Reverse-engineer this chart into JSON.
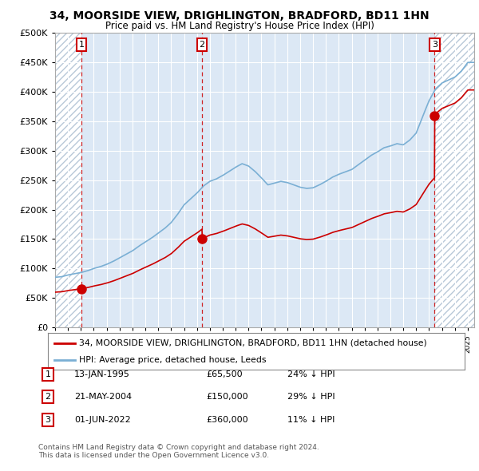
{
  "title": "34, MOORSIDE VIEW, DRIGHLINGTON, BRADFORD, BD11 1HN",
  "subtitle": "Price paid vs. HM Land Registry's House Price Index (HPI)",
  "xlim": [
    1993.0,
    2025.5
  ],
  "ylim": [
    0,
    500000
  ],
  "yticks": [
    0,
    50000,
    100000,
    150000,
    200000,
    250000,
    300000,
    350000,
    400000,
    450000,
    500000
  ],
  "ytick_labels": [
    "£0",
    "£50K",
    "£100K",
    "£150K",
    "£200K",
    "£250K",
    "£300K",
    "£350K",
    "£400K",
    "£450K",
    "£500K"
  ],
  "sale_dates": [
    1995.04,
    2004.39,
    2022.42
  ],
  "sale_prices": [
    65500,
    150000,
    360000
  ],
  "sale_labels": [
    "1",
    "2",
    "3"
  ],
  "hpi_color": "#7aafd4",
  "sale_color": "#cc0000",
  "vline_color": "#cc0000",
  "legend_sale": "34, MOORSIDE VIEW, DRIGHLINGTON, BRADFORD, BD11 1HN (detached house)",
  "legend_hpi": "HPI: Average price, detached house, Leeds",
  "table_rows": [
    [
      "1",
      "13-JAN-1995",
      "£65,500",
      "24% ↓ HPI"
    ],
    [
      "2",
      "21-MAY-2004",
      "£150,000",
      "29% ↓ HPI"
    ],
    [
      "3",
      "01-JUN-2022",
      "£360,000",
      "11% ↓ HPI"
    ]
  ],
  "footnote": "Contains HM Land Registry data © Crown copyright and database right 2024.\nThis data is licensed under the Open Government Licence v3.0.",
  "bg_color": "#ffffff",
  "plot_bg_color": "#dce8f5",
  "hatch_bg_color": "#ffffff",
  "hatch_color": "#b8c8d8",
  "grid_color": "#ffffff",
  "hpi_data_years": [
    1993,
    1993.5,
    1994,
    1994.5,
    1995,
    1995.5,
    1996,
    1996.5,
    1997,
    1997.5,
    1998,
    1998.5,
    1999,
    1999.5,
    2000,
    2000.5,
    2001,
    2001.5,
    2002,
    2002.5,
    2003,
    2003.5,
    2004,
    2004.5,
    2005,
    2005.5,
    2006,
    2006.5,
    2007,
    2007.5,
    2008,
    2008.5,
    2009,
    2009.5,
    2010,
    2010.5,
    2011,
    2011.5,
    2012,
    2012.5,
    2013,
    2013.5,
    2014,
    2014.5,
    2015,
    2015.5,
    2016,
    2016.5,
    2017,
    2017.5,
    2018,
    2018.5,
    2019,
    2019.5,
    2020,
    2020.5,
    2021,
    2021.5,
    2022,
    2022.5,
    2023,
    2023.5,
    2024,
    2024.5,
    2025
  ],
  "hpi_data_values": [
    85000,
    86000,
    89000,
    91000,
    93000,
    96000,
    100000,
    103000,
    107000,
    112000,
    118000,
    124000,
    130000,
    138000,
    145000,
    152000,
    160000,
    168000,
    178000,
    192000,
    208000,
    218000,
    228000,
    240000,
    248000,
    252000,
    258000,
    265000,
    272000,
    278000,
    274000,
    265000,
    254000,
    242000,
    245000,
    248000,
    246000,
    242000,
    238000,
    236000,
    237000,
    242000,
    248000,
    255000,
    260000,
    264000,
    268000,
    276000,
    284000,
    292000,
    298000,
    305000,
    308000,
    312000,
    310000,
    318000,
    330000,
    358000,
    385000,
    405000,
    415000,
    420000,
    425000,
    435000,
    450000
  ]
}
